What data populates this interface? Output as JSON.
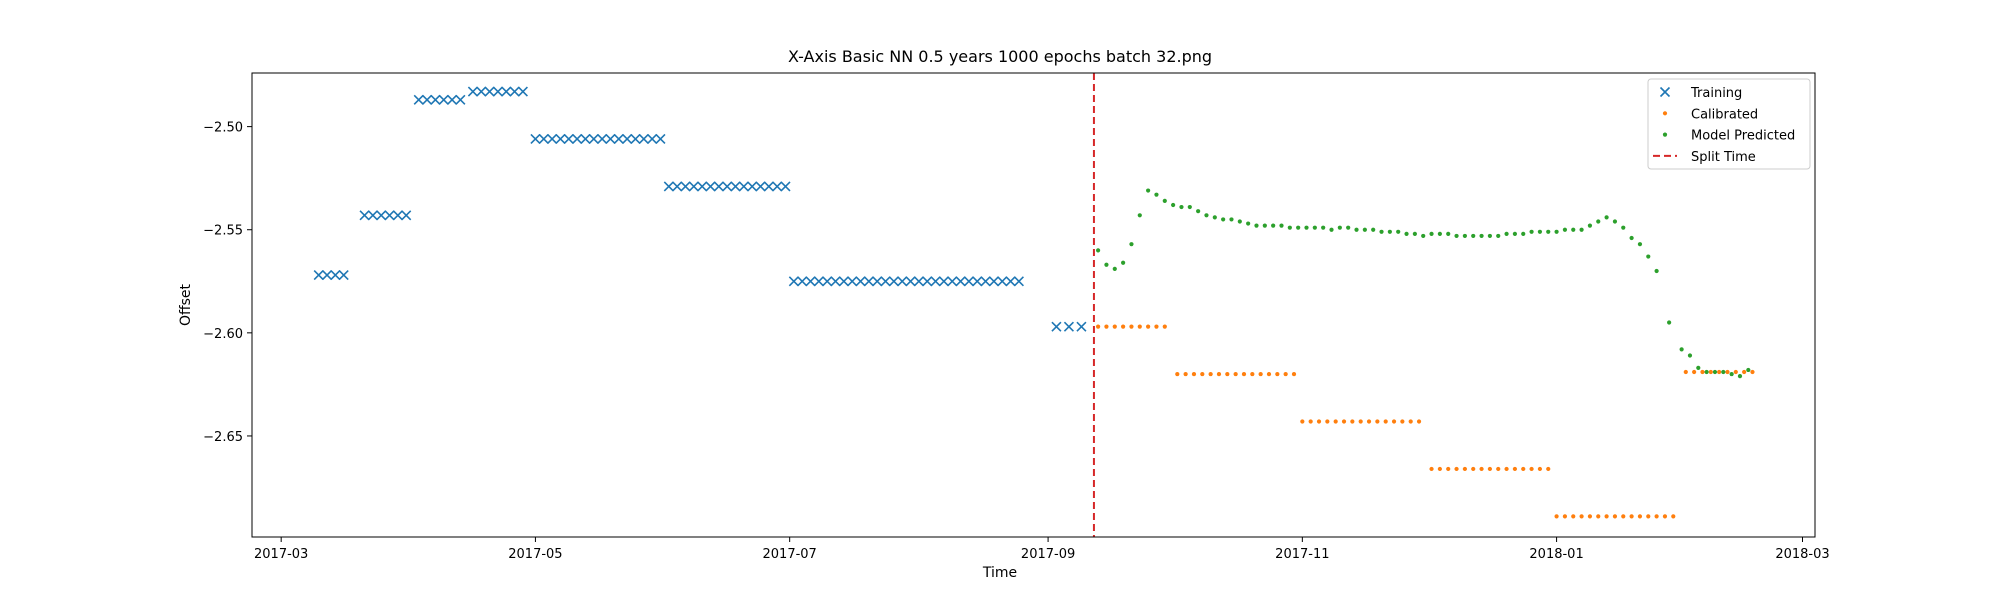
{
  "chart_data": {
    "type": "scatter",
    "title": "X-Axis Basic NN 0.5 years 1000 epochs batch 32.png",
    "xlabel": "Time",
    "ylabel": "Offset",
    "xlim": [
      "2017-02-22",
      "2018-03-04"
    ],
    "ylim": [
      -2.699,
      -2.474
    ],
    "x_ticks": [
      "2017-03",
      "2017-05",
      "2017-07",
      "2017-09",
      "2017-11",
      "2018-01",
      "2018-03"
    ],
    "y_ticks": [
      -2.5,
      -2.55,
      -2.6,
      -2.65
    ],
    "y_tick_labels": [
      "−2.50",
      "−2.55",
      "−2.60",
      "−2.65"
    ],
    "grid": false,
    "legend_position": "upper-right",
    "split_line": {
      "label": "Split Time",
      "date": "2017-09-12",
      "color": "#d62728",
      "style": "dashed"
    },
    "series": [
      {
        "name": "Training",
        "marker": "x",
        "color": "#1f77b4",
        "segments": [
          {
            "start": "2017-03-10",
            "end": "2017-03-17",
            "every_days": 2,
            "value": -2.572
          },
          {
            "start": "2017-03-21",
            "end": "2017-03-31",
            "every_days": 2,
            "value": -2.543
          },
          {
            "start": "2017-04-03",
            "end": "2017-04-13",
            "every_days": 2,
            "value": -2.487
          },
          {
            "start": "2017-04-16",
            "end": "2017-04-28",
            "every_days": 2,
            "value": -2.483
          },
          {
            "start": "2017-05-01",
            "end": "2017-05-31",
            "every_days": 2,
            "value": -2.506
          },
          {
            "start": "2017-06-02",
            "end": "2017-06-30",
            "every_days": 2,
            "value": -2.529
          },
          {
            "start": "2017-07-02",
            "end": "2017-08-25",
            "every_days": 2,
            "value": -2.575
          },
          {
            "start": "2017-09-03",
            "end": "2017-09-11",
            "every_days": 3,
            "value": -2.597
          }
        ]
      },
      {
        "name": "Calibrated",
        "marker": "dot",
        "color": "#ff7f0e",
        "segments": [
          {
            "start": "2017-09-13",
            "end": "2017-09-30",
            "every_days": 2,
            "value": -2.597
          },
          {
            "start": "2017-10-02",
            "end": "2017-10-30",
            "every_days": 2,
            "value": -2.62
          },
          {
            "start": "2017-11-01",
            "end": "2017-11-30",
            "every_days": 2,
            "value": -2.643
          },
          {
            "start": "2017-12-02",
            "end": "2017-12-30",
            "every_days": 2,
            "value": -2.666
          },
          {
            "start": "2018-01-01",
            "end": "2018-01-30",
            "every_days": 2,
            "value": -2.689
          },
          {
            "start": "2018-02-01",
            "end": "2018-02-17",
            "every_days": 2,
            "value": -2.619
          }
        ]
      },
      {
        "name": "Model Predicted",
        "marker": "dot",
        "color": "#2ca02c",
        "points": [
          [
            "2017-09-13",
            -2.56
          ],
          [
            "2017-09-15",
            -2.567
          ],
          [
            "2017-09-17",
            -2.569
          ],
          [
            "2017-09-19",
            -2.566
          ],
          [
            "2017-09-21",
            -2.557
          ],
          [
            "2017-09-23",
            -2.543
          ],
          [
            "2017-09-25",
            -2.531
          ],
          [
            "2017-09-27",
            -2.533
          ],
          [
            "2017-09-29",
            -2.536
          ],
          [
            "2017-10-01",
            -2.538
          ],
          [
            "2017-10-03",
            -2.539
          ],
          [
            "2017-10-05",
            -2.539
          ],
          [
            "2017-10-07",
            -2.541
          ],
          [
            "2017-10-09",
            -2.543
          ],
          [
            "2017-10-11",
            -2.544
          ],
          [
            "2017-10-13",
            -2.545
          ],
          [
            "2017-10-15",
            -2.545
          ],
          [
            "2017-10-17",
            -2.546
          ],
          [
            "2017-10-19",
            -2.547
          ],
          [
            "2017-10-21",
            -2.548
          ],
          [
            "2017-10-23",
            -2.548
          ],
          [
            "2017-10-25",
            -2.548
          ],
          [
            "2017-10-27",
            -2.548
          ],
          [
            "2017-10-29",
            -2.549
          ],
          [
            "2017-10-31",
            -2.549
          ],
          [
            "2017-11-02",
            -2.549
          ],
          [
            "2017-11-04",
            -2.549
          ],
          [
            "2017-11-06",
            -2.549
          ],
          [
            "2017-11-08",
            -2.55
          ],
          [
            "2017-11-10",
            -2.549
          ],
          [
            "2017-11-12",
            -2.549
          ],
          [
            "2017-11-14",
            -2.55
          ],
          [
            "2017-11-16",
            -2.55
          ],
          [
            "2017-11-18",
            -2.55
          ],
          [
            "2017-11-20",
            -2.551
          ],
          [
            "2017-11-22",
            -2.551
          ],
          [
            "2017-11-24",
            -2.551
          ],
          [
            "2017-11-26",
            -2.552
          ],
          [
            "2017-11-28",
            -2.552
          ],
          [
            "2017-11-30",
            -2.553
          ],
          [
            "2017-12-02",
            -2.552
          ],
          [
            "2017-12-04",
            -2.552
          ],
          [
            "2017-12-06",
            -2.552
          ],
          [
            "2017-12-08",
            -2.553
          ],
          [
            "2017-12-10",
            -2.553
          ],
          [
            "2017-12-12",
            -2.553
          ],
          [
            "2017-12-14",
            -2.553
          ],
          [
            "2017-12-16",
            -2.553
          ],
          [
            "2017-12-18",
            -2.553
          ],
          [
            "2017-12-20",
            -2.552
          ],
          [
            "2017-12-22",
            -2.552
          ],
          [
            "2017-12-24",
            -2.552
          ],
          [
            "2017-12-26",
            -2.551
          ],
          [
            "2017-12-28",
            -2.551
          ],
          [
            "2017-12-30",
            -2.551
          ],
          [
            "2018-01-01",
            -2.551
          ],
          [
            "2018-01-03",
            -2.55
          ],
          [
            "2018-01-05",
            -2.55
          ],
          [
            "2018-01-07",
            -2.55
          ],
          [
            "2018-01-09",
            -2.548
          ],
          [
            "2018-01-11",
            -2.546
          ],
          [
            "2018-01-13",
            -2.544
          ],
          [
            "2018-01-15",
            -2.546
          ],
          [
            "2018-01-17",
            -2.549
          ],
          [
            "2018-01-19",
            -2.554
          ],
          [
            "2018-01-21",
            -2.557
          ],
          [
            "2018-01-23",
            -2.563
          ],
          [
            "2018-01-25",
            -2.57
          ],
          [
            "2018-01-28",
            -2.595
          ],
          [
            "2018-01-31",
            -2.608
          ],
          [
            "2018-02-02",
            -2.611
          ],
          [
            "2018-02-04",
            -2.617
          ],
          [
            "2018-02-06",
            -2.619
          ],
          [
            "2018-02-08",
            -2.619
          ],
          [
            "2018-02-10",
            -2.619
          ],
          [
            "2018-02-12",
            -2.62
          ],
          [
            "2018-02-14",
            -2.621
          ],
          [
            "2018-02-16",
            -2.618
          ]
        ]
      }
    ]
  }
}
